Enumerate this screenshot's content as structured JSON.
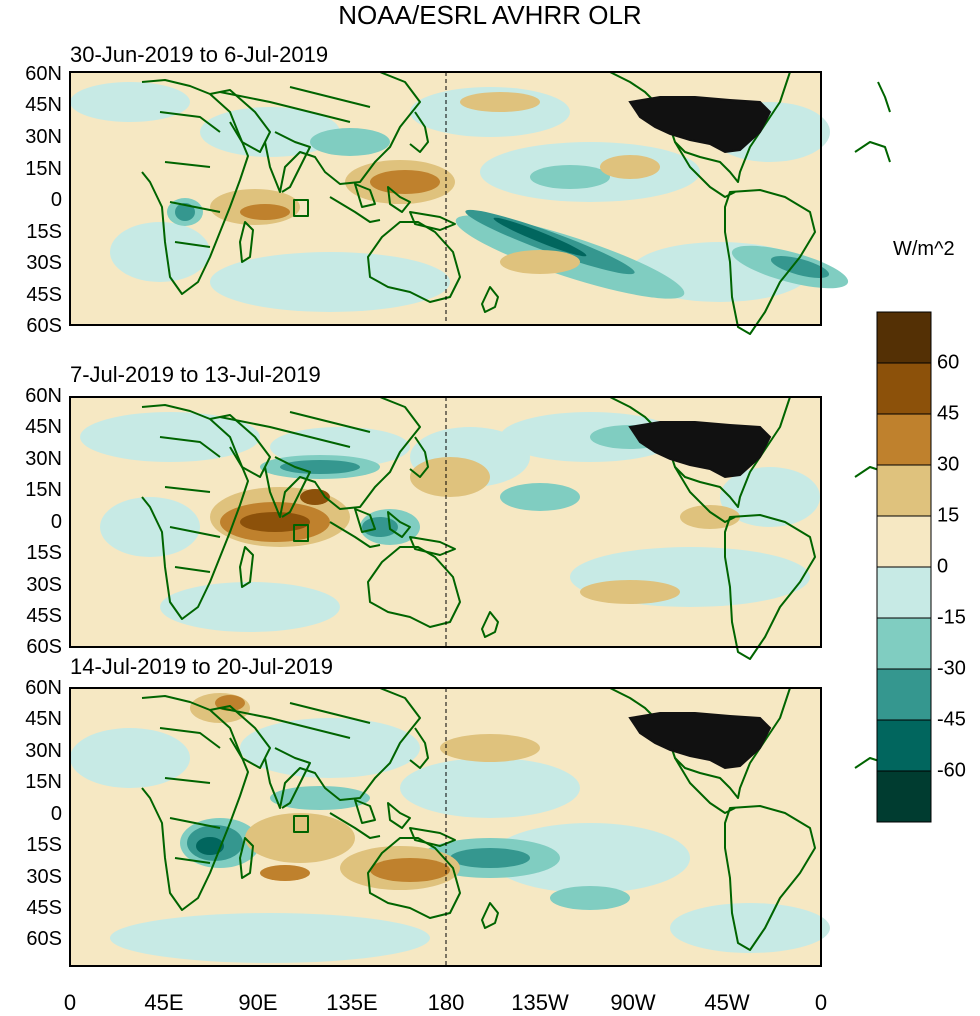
{
  "title": "NOAA/ESRL AVHRR OLR",
  "panels": [
    {
      "title": "30-Jun-2019 to 6-Jul-2019"
    },
    {
      "title": "7-Jul-2019 to 13-Jul-2019"
    },
    {
      "title": "14-Jul-2019 to 20-Jul-2019"
    }
  ],
  "lat_labels": [
    "60N",
    "45N",
    "30N",
    "15N",
    "0",
    "15S",
    "30S",
    "45S",
    "60S"
  ],
  "lon_labels": [
    "0",
    "45E",
    "90E",
    "135E",
    "180",
    "135W",
    "90W",
    "45W",
    "0"
  ],
  "colorbar": {
    "unit": "W/m^2",
    "levels": [
      "60",
      "45",
      "30",
      "15",
      "0",
      "-15",
      "-30",
      "-45",
      "-60"
    ],
    "colors": [
      "#543005",
      "#8c510a",
      "#bf812d",
      "#dfc27d",
      "#f6e8c3",
      "#c7eae5",
      "#80cdc1",
      "#35978f",
      "#01665e",
      "#003c30"
    ]
  },
  "colors": {
    "coast": "#006400",
    "ocean_base": "#f6e8c3"
  }
}
